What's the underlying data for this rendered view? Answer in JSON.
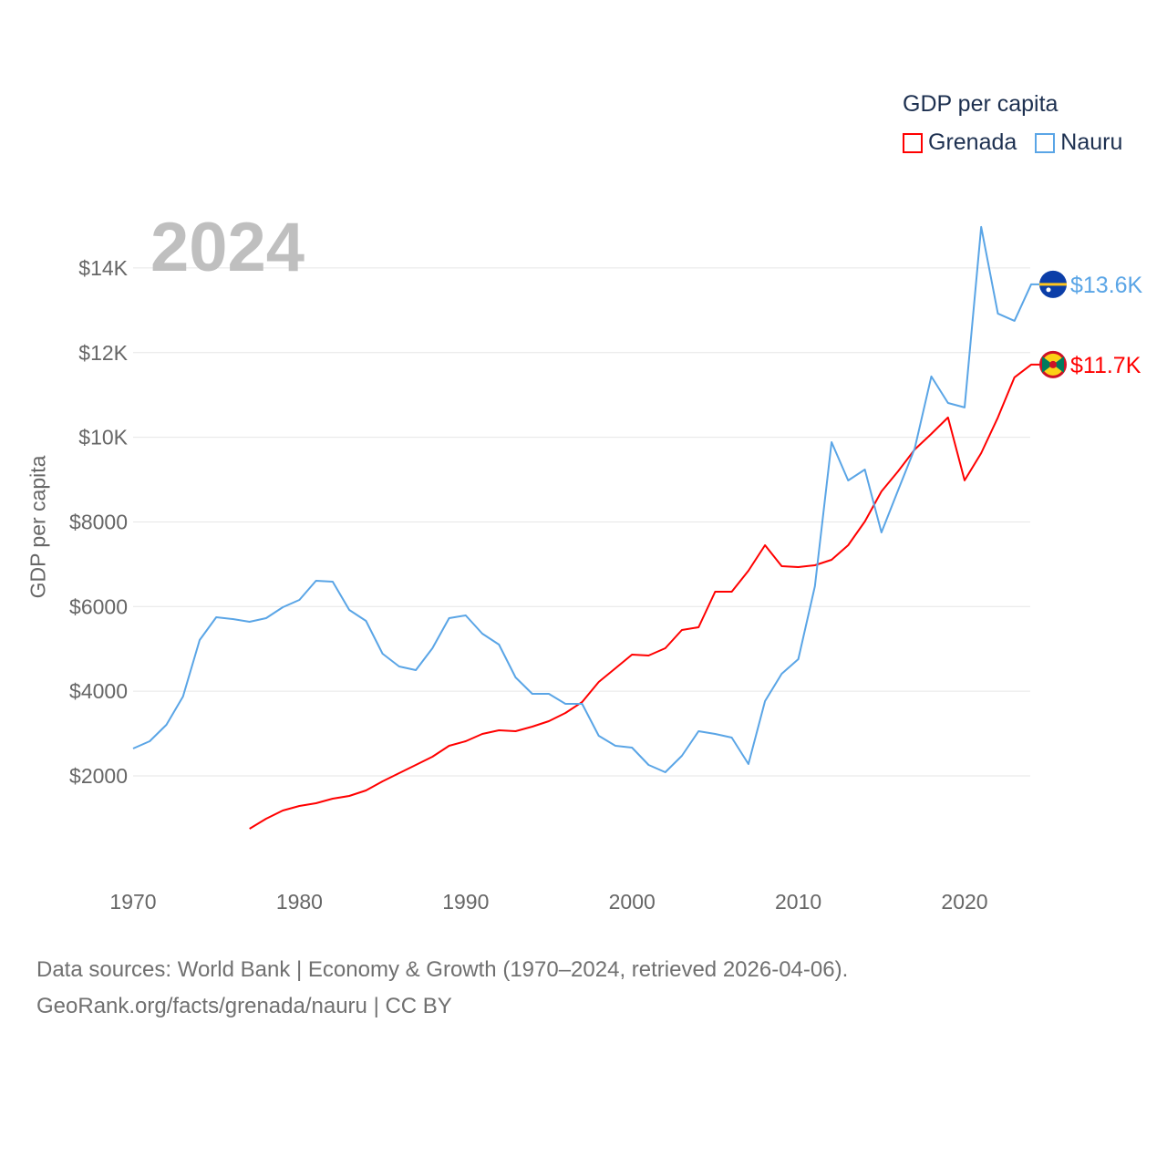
{
  "chart_data": {
    "type": "line",
    "title": "GDP per capita",
    "ylabel": "GDP per capita",
    "xlabel": "",
    "current_year_label": "2024",
    "xlim": [
      1970,
      2024
    ],
    "ylim": [
      0,
      15500
    ],
    "x_ticks": [
      1970,
      1980,
      1990,
      2000,
      2010,
      2020
    ],
    "y_ticks": [
      2000,
      4000,
      6000,
      8000,
      10000,
      12000,
      14000
    ],
    "y_tick_labels": [
      "$2000",
      "$4000",
      "$6000",
      "$8000",
      "$10K",
      "$12K",
      "$14K"
    ],
    "grid": true,
    "legend_position": "top-right",
    "series": [
      {
        "name": "Grenada",
        "color": "#ff0000",
        "end_label": "$11.7K",
        "flag": "grenada-flag",
        "x": [
          1977,
          1978,
          1979,
          1980,
          1981,
          1982,
          1983,
          1984,
          1985,
          1986,
          1987,
          1988,
          1989,
          1990,
          1991,
          1992,
          1993,
          1994,
          1995,
          1996,
          1997,
          1998,
          1999,
          2000,
          2001,
          2002,
          2003,
          2004,
          2005,
          2006,
          2007,
          2008,
          2009,
          2010,
          2011,
          2012,
          2013,
          2014,
          2015,
          2016,
          2017,
          2018,
          2019,
          2020,
          2021,
          2022,
          2023,
          2024
        ],
        "values": [
          750,
          987,
          1180,
          1288,
          1353,
          1461,
          1525,
          1654,
          1870,
          2064,
          2258,
          2452,
          2710,
          2818,
          2990,
          3076,
          3055,
          3162,
          3292,
          3486,
          3744,
          4218,
          4541,
          4865,
          4843,
          5015,
          5446,
          5511,
          6351,
          6351,
          6846,
          7449,
          6954,
          6933,
          6976,
          7105,
          7449,
          8010,
          8721,
          9195,
          9712,
          10079,
          10467,
          8980,
          9626,
          10467,
          11415,
          11717
        ]
      },
      {
        "name": "Nauru",
        "color": "#5aa5e6",
        "end_label": "$13.6K",
        "flag": "nauru-flag",
        "x": [
          1970,
          1971,
          1972,
          1973,
          1974,
          1975,
          1976,
          1977,
          1978,
          1979,
          1980,
          1981,
          1982,
          1983,
          1984,
          1985,
          1986,
          1987,
          1988,
          1989,
          1990,
          1991,
          1992,
          1993,
          1994,
          1995,
          1996,
          1997,
          1998,
          1999,
          2000,
          2001,
          2002,
          2003,
          2004,
          2005,
          2006,
          2007,
          2008,
          2009,
          2010,
          2011,
          2012,
          2013,
          2014,
          2015,
          2016,
          2017,
          2018,
          2019,
          2020,
          2021,
          2022,
          2023,
          2024
        ],
        "values": [
          2645,
          2818,
          3205,
          3873,
          5209,
          5748,
          5705,
          5640,
          5726,
          5985,
          6157,
          6610,
          6588,
          5920,
          5662,
          4886,
          4584,
          4498,
          5015,
          5726,
          5791,
          5360,
          5101,
          4326,
          3938,
          3938,
          3700,
          3700,
          2947,
          2710,
          2667,
          2258,
          2085,
          2473,
          3055,
          2990,
          2904,
          2280,
          3766,
          4412,
          4757,
          6480,
          9884,
          8979,
          9238,
          7751,
          8743,
          9734,
          11436,
          10811,
          10704,
          14970,
          12923,
          12751,
          13613
        ]
      }
    ]
  },
  "footer": {
    "line1": "Data sources: World Bank | Economy & Growth (1970–2024, retrieved 2026-04-06).",
    "line2": "GeoRank.org/facts/grenada/nauru | CC BY"
  }
}
